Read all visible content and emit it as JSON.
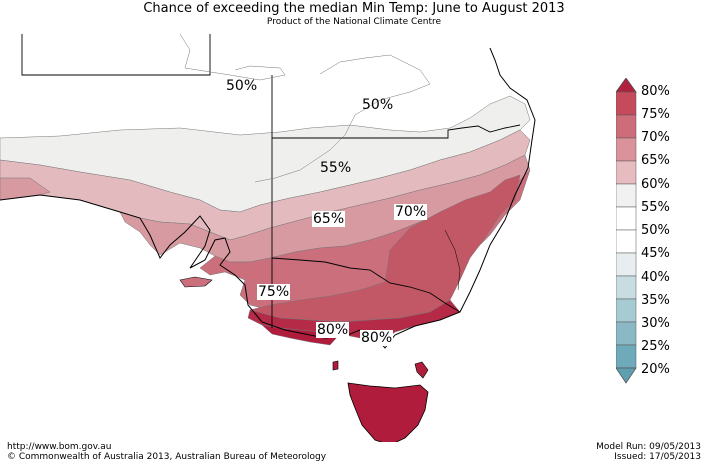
{
  "header": {
    "title": "Chance of exceeding the median Min Temp: June to August 2013",
    "subtitle": "Product of the National Climate Centre"
  },
  "map": {
    "contour_labels": [
      "50%",
      "50%",
      "55%",
      "65%",
      "70%",
      "75%",
      "80%",
      "80%"
    ],
    "colors": {
      "c50_55": "#efefee",
      "c55_60": "#e3babe",
      "c60_65": "#d79aa1",
      "c65_70": "#cc6f7d",
      "c70_75": "#c25766",
      "c75_80": "#b42a47",
      "c80": "#b01c3b"
    }
  },
  "legend": {
    "labels": [
      "80%",
      "75%",
      "70%",
      "65%",
      "60%",
      "55%",
      "50%",
      "45%",
      "40%",
      "35%",
      "30%",
      "25%",
      "20%"
    ],
    "colors": [
      "#b2203f",
      "#c44a5c",
      "#cf6c7a",
      "#da939b",
      "#e6bcc0",
      "#f2f1f1",
      "#ffffff",
      "#e8eef0",
      "#c7dde1",
      "#a7cbd2",
      "#8ab8c4",
      "#6eaaba"
    ]
  },
  "footer": {
    "url": "http://www.bom.gov.au",
    "copyright": "©  Commonwealth of Australia 2013, Australian Bureau of Meteorology",
    "model_run": "Model Run: 09/05/2013",
    "issued": "Issued: 17/05/2013"
  }
}
